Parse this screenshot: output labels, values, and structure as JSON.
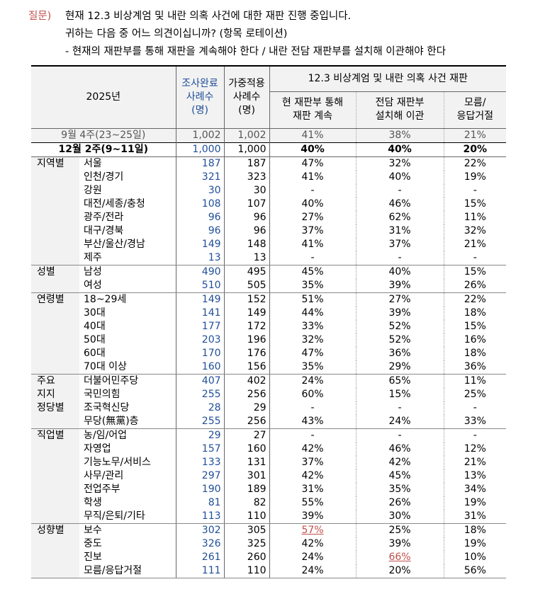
{
  "question": {
    "label": "질문)",
    "lines": [
      "현재 12.3 비상계엄 및 내란 의혹 사건에 대한 재판 진행 중입니다.",
      "귀하는 다음 중 어느 의견이십니까? (항목 로테이션)",
      "- 현재의 재판부를 통해 재판을 계속해야 한다 / 내란 전담 재판부를 설치해 이관해야 한다"
    ]
  },
  "header": {
    "year": "2025년",
    "col_completed": [
      "조사완료",
      "사례수",
      "(명)"
    ],
    "col_weighted": [
      "가중적용",
      "사례수",
      "(명)"
    ],
    "group_title": "12.3 비상계엄 및 내란 의혹 사건 재판",
    "opt1": [
      "현 재판부 통해",
      "재판 계속"
    ],
    "opt2": [
      "전담 재판부",
      "설치해 이관"
    ],
    "opt3": [
      "모름/",
      "응답거절"
    ]
  },
  "previous": {
    "label": "9월 4주(23~25일)",
    "n": "1,002",
    "w": "1,002",
    "a": "41%",
    "b": "38%",
    "c": "21%"
  },
  "total": {
    "label": "12월 2주(9~11일)",
    "n": "1,000",
    "w": "1,000",
    "a": "40%",
    "b": "40%",
    "c": "20%"
  },
  "groups": [
    {
      "name": [
        "지역별"
      ],
      "rows": [
        {
          "label": "서울",
          "n": "187",
          "w": "187",
          "a": "47%",
          "b": "32%",
          "c": "22%"
        },
        {
          "label": "인천/경기",
          "n": "321",
          "w": "323",
          "a": "41%",
          "b": "40%",
          "c": "19%"
        },
        {
          "label": "강원",
          "n": "30",
          "w": "30",
          "a": "-",
          "b": "-",
          "c": "-"
        },
        {
          "label": "대전/세종/충청",
          "n": "108",
          "w": "107",
          "a": "40%",
          "b": "46%",
          "c": "15%"
        },
        {
          "label": "광주/전라",
          "n": "96",
          "w": "96",
          "a": "27%",
          "b": "62%",
          "c": "11%"
        },
        {
          "label": "대구/경북",
          "n": "96",
          "w": "96",
          "a": "37%",
          "b": "31%",
          "c": "32%"
        },
        {
          "label": "부산/울산/경남",
          "n": "149",
          "w": "148",
          "a": "41%",
          "b": "37%",
          "c": "21%"
        },
        {
          "label": "제주",
          "n": "13",
          "w": "13",
          "a": "-",
          "b": "-",
          "c": "-"
        }
      ]
    },
    {
      "name": [
        "성별"
      ],
      "rows": [
        {
          "label": "남성",
          "n": "490",
          "w": "495",
          "a": "45%",
          "b": "40%",
          "c": "15%"
        },
        {
          "label": "여성",
          "n": "510",
          "w": "505",
          "a": "35%",
          "b": "39%",
          "c": "26%"
        }
      ]
    },
    {
      "name": [
        "연령별"
      ],
      "rows": [
        {
          "label": "18~29세",
          "n": "149",
          "w": "152",
          "a": "51%",
          "b": "27%",
          "c": "22%"
        },
        {
          "label": "30대",
          "n": "141",
          "w": "149",
          "a": "44%",
          "b": "39%",
          "c": "18%"
        },
        {
          "label": "40대",
          "n": "177",
          "w": "172",
          "a": "33%",
          "b": "52%",
          "c": "15%"
        },
        {
          "label": "50대",
          "n": "203",
          "w": "196",
          "a": "32%",
          "b": "52%",
          "c": "16%"
        },
        {
          "label": "60대",
          "n": "170",
          "w": "176",
          "a": "47%",
          "b": "36%",
          "c": "18%"
        },
        {
          "label": "70대 이상",
          "n": "160",
          "w": "156",
          "a": "35%",
          "b": "29%",
          "c": "36%"
        }
      ]
    },
    {
      "name": [
        "주요",
        "지지",
        "정당별"
      ],
      "rows": [
        {
          "label": "더불어민주당",
          "n": "407",
          "w": "402",
          "a": "24%",
          "b": "65%",
          "c": "11%"
        },
        {
          "label": "국민의힘",
          "n": "255",
          "w": "256",
          "a": "60%",
          "b": "15%",
          "c": "25%"
        },
        {
          "label": "조국혁신당",
          "n": "28",
          "w": "29",
          "a": "-",
          "b": "-",
          "c": "-"
        },
        {
          "label": "무당(無黨)층",
          "n": "255",
          "w": "256",
          "a": "43%",
          "b": "24%",
          "c": "33%"
        }
      ]
    },
    {
      "name": [
        "직업별"
      ],
      "rows": [
        {
          "label": "농/임/어업",
          "n": "29",
          "w": "27",
          "a": "-",
          "b": "-",
          "c": "-"
        },
        {
          "label": "자영업",
          "n": "157",
          "w": "160",
          "a": "42%",
          "b": "46%",
          "c": "12%"
        },
        {
          "label": "기능노무/서비스",
          "n": "133",
          "w": "131",
          "a": "37%",
          "b": "42%",
          "c": "21%"
        },
        {
          "label": "사무/관리",
          "n": "297",
          "w": "301",
          "a": "42%",
          "b": "45%",
          "c": "13%"
        },
        {
          "label": "전업주부",
          "n": "190",
          "w": "189",
          "a": "31%",
          "b": "35%",
          "c": "34%"
        },
        {
          "label": "학생",
          "n": "81",
          "w": "82",
          "a": "55%",
          "b": "26%",
          "c": "19%"
        },
        {
          "label": "무직/은퇴/기타",
          "n": "113",
          "w": "110",
          "a": "39%",
          "b": "30%",
          "c": "31%"
        }
      ]
    },
    {
      "name": [
        "성향별"
      ],
      "rows": [
        {
          "label": "보수",
          "n": "302",
          "w": "305",
          "a": "57%",
          "b": "25%",
          "c": "18%",
          "hl": "a"
        },
        {
          "label": "중도",
          "n": "326",
          "w": "325",
          "a": "42%",
          "b": "39%",
          "c": "19%"
        },
        {
          "label": "진보",
          "n": "261",
          "w": "260",
          "a": "24%",
          "b": "66%",
          "c": "10%",
          "hl": "b"
        },
        {
          "label": "모름/응답거절",
          "n": "111",
          "w": "110",
          "a": "24%",
          "b": "20%",
          "c": "56%"
        }
      ]
    }
  ]
}
